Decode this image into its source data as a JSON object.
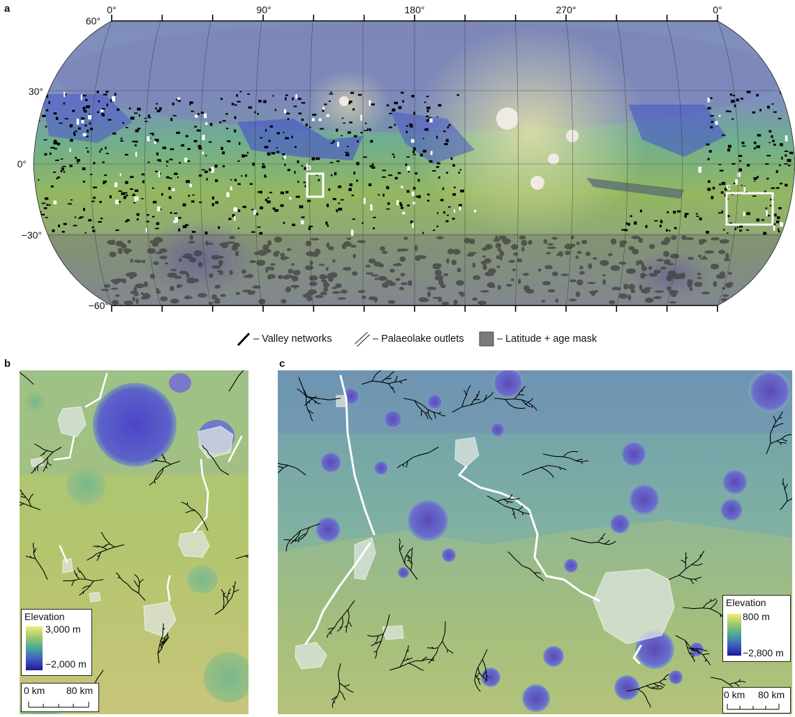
{
  "panel_a": {
    "letter": "a",
    "lon_labels": [
      {
        "text": "0°",
        "x": 160
      },
      {
        "text": "90°",
        "x": 378
      },
      {
        "text": "180°",
        "x": 594
      },
      {
        "text": "270°",
        "x": 811
      },
      {
        "text": "0°",
        "x": 1028
      }
    ],
    "lat_labels": [
      "60°",
      "30°",
      "0°",
      "−30°",
      "−60°"
    ],
    "box_labels": {
      "b": "b",
      "c": "c"
    }
  },
  "legend": {
    "valley": "– Valley networks",
    "outlet": "– Palaeolake outlets",
    "mask": "– Latitude + age mask"
  },
  "panel_b": {
    "letter": "b",
    "elevation_title": "Elevation",
    "elevation_max": "3,000 m",
    "elevation_min": "−2,000 m",
    "scale_left": "0 km",
    "scale_right": "80 km"
  },
  "panel_c": {
    "letter": "c",
    "elevation_title": "Elevation",
    "elevation_max": "800 m",
    "elevation_min": "−2,800 m",
    "scale_left": "0 km",
    "scale_right": "80 km"
  },
  "colors": {
    "valley": "#000000",
    "outlet": "#ffffff",
    "mask": "#7a7a7a",
    "elev_high": "#f2ee78",
    "elev_mid": "#58b088",
    "elev_low": "#2a1ea0"
  }
}
